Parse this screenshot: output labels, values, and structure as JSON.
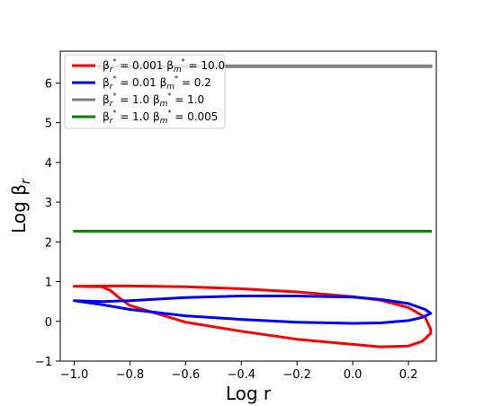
{
  "chart_data": {
    "type": "line",
    "title": "",
    "xlabel": "Log r",
    "ylabel_text": "Log β",
    "ylabel_sub": "r",
    "xlim": [
      -1.05,
      0.3
    ],
    "ylim": [
      -1.0,
      6.8
    ],
    "x_ticks": [
      -1.0,
      -0.8,
      -0.6,
      -0.4,
      -0.2,
      0.0,
      0.2
    ],
    "x_tick_labels": [
      "−1.0",
      "−0.8",
      "−0.6",
      "−0.4",
      "−0.2",
      "0.0",
      "0.2"
    ],
    "y_ticks": [
      -1,
      0,
      1,
      2,
      3,
      4,
      5,
      6
    ],
    "y_tick_labels": [
      "−1",
      "0",
      "1",
      "2",
      "3",
      "4",
      "5",
      "6"
    ],
    "grid": false,
    "legend_position": "top-left",
    "series": [
      {
        "name": "βr* = 0.001 βm* = 10.0",
        "legend_main": "β",
        "legend_sub1": "r",
        "legend_sup1": "*",
        "legend_mid": " = 0.001 β",
        "legend_sub2": "m",
        "legend_sup2": "*",
        "legend_end": " = 10.0",
        "color": "#ff0000",
        "x": [
          -1.0,
          -0.9,
          -0.87,
          -0.84,
          -0.8,
          -0.6,
          -0.4,
          -0.2,
          0.0,
          0.1,
          0.2,
          0.25,
          0.28,
          0.28,
          0.26,
          0.2,
          0.1,
          0.0,
          -0.2,
          -0.4,
          -0.6,
          -0.8,
          -0.9,
          -1.0
        ],
        "y": [
          0.88,
          0.87,
          0.78,
          0.6,
          0.4,
          -0.02,
          -0.25,
          -0.45,
          -0.58,
          -0.64,
          -0.62,
          -0.5,
          -0.3,
          -0.2,
          0.1,
          0.35,
          0.53,
          0.62,
          0.74,
          0.82,
          0.87,
          0.89,
          0.89,
          0.88
        ]
      },
      {
        "name": "βr* = 0.01 βm* = 0.2",
        "legend_main": "β",
        "legend_sub1": "r",
        "legend_sup1": "*",
        "legend_mid": " = 0.01 β",
        "legend_sub2": "m",
        "legend_sup2": "*",
        "legend_end": " = 0.2",
        "color": "#0000ff",
        "x": [
          -1.0,
          -0.9,
          -0.8,
          -0.6,
          -0.4,
          -0.2,
          0.0,
          0.1,
          0.2,
          0.25,
          0.28,
          0.26,
          0.2,
          0.1,
          0.0,
          -0.2,
          -0.4,
          -0.6,
          -0.8,
          -0.9,
          -1.0
        ],
        "y": [
          0.52,
          0.42,
          0.3,
          0.14,
          0.05,
          -0.02,
          -0.05,
          -0.04,
          0.02,
          0.1,
          0.2,
          0.3,
          0.45,
          0.55,
          0.61,
          0.64,
          0.64,
          0.6,
          0.52,
          0.5,
          0.52
        ]
      },
      {
        "name": "βr* = 1.0 βm* = 1.0",
        "legend_main": "β",
        "legend_sub1": "r",
        "legend_sup1": "*",
        "legend_mid": " = 1.0 β",
        "legend_sub2": "m",
        "legend_sup2": "*",
        "legend_end": " = 1.0",
        "color": "#808080",
        "x": [
          -1.0,
          0.28
        ],
        "y": [
          6.42,
          6.42
        ]
      },
      {
        "name": "βr* = 1.0 βm* = 0.005",
        "legend_main": "β",
        "legend_sub1": "r",
        "legend_sup1": "*",
        "legend_mid": " = 1.0 β",
        "legend_sub2": "m",
        "legend_sup2": "*",
        "legend_end": " = 0.005",
        "color": "#008000",
        "x": [
          -1.0,
          0.28
        ],
        "y": [
          2.27,
          2.27
        ]
      }
    ]
  }
}
